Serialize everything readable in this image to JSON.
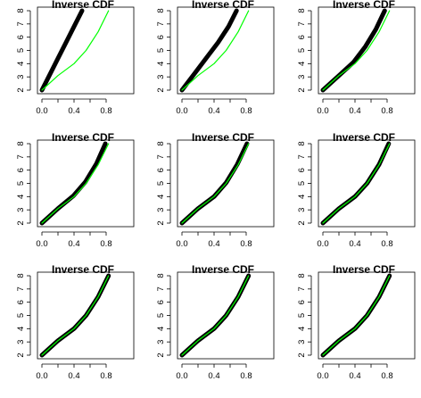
{
  "chart_data": [
    {
      "type": "line",
      "title": "Inverse CDF",
      "xlim": [
        0,
        1
      ],
      "ylim": [
        2,
        8
      ],
      "x_ticks": [
        "0.0",
        "0.4",
        "0.8"
      ],
      "y_ticks": [
        "2",
        "3",
        "4",
        "5",
        "6",
        "7",
        "8"
      ],
      "series": [
        {
          "color": "#000000",
          "x": [
            0.0,
            0.1,
            0.2,
            0.3,
            0.4,
            0.5
          ],
          "y": [
            2.0,
            3.2,
            4.4,
            5.6,
            6.8,
            8.0
          ]
        },
        {
          "color": "#00ff00",
          "x": [
            0.0,
            0.2,
            0.4,
            0.55,
            0.7,
            0.83
          ],
          "y": [
            2.0,
            3.1,
            4.0,
            5.0,
            6.4,
            8.0
          ]
        }
      ]
    },
    {
      "type": "line",
      "title": "Inverse CDF",
      "xlim": [
        0,
        1
      ],
      "ylim": [
        2,
        8
      ],
      "x_ticks": [
        "0.0",
        "0.4",
        "0.8"
      ],
      "y_ticks": [
        "2",
        "3",
        "4",
        "5",
        "6",
        "7",
        "8"
      ],
      "series": [
        {
          "color": "#000000",
          "x": [
            0.0,
            0.15,
            0.3,
            0.45,
            0.58,
            0.68
          ],
          "y": [
            2.0,
            3.2,
            4.4,
            5.6,
            6.8,
            8.0
          ]
        },
        {
          "color": "#00ff00",
          "x": [
            0.0,
            0.2,
            0.4,
            0.55,
            0.7,
            0.83
          ],
          "y": [
            2.0,
            3.1,
            4.0,
            5.0,
            6.4,
            8.0
          ]
        }
      ]
    },
    {
      "type": "line",
      "title": "Inverse CDF",
      "xlim": [
        0,
        1
      ],
      "ylim": [
        2,
        8
      ],
      "x_ticks": [
        "0.0",
        "0.4",
        "0.8"
      ],
      "y_ticks": [
        "2",
        "3",
        "4",
        "5",
        "6",
        "7",
        "8"
      ],
      "series": [
        {
          "color": "#000000",
          "x": [
            0.0,
            0.2,
            0.38,
            0.53,
            0.66,
            0.77
          ],
          "y": [
            2.0,
            3.1,
            4.1,
            5.3,
            6.6,
            8.0
          ]
        },
        {
          "color": "#00ff00",
          "x": [
            0.0,
            0.2,
            0.4,
            0.55,
            0.7,
            0.83
          ],
          "y": [
            2.0,
            3.1,
            4.0,
            5.0,
            6.4,
            8.0
          ]
        }
      ]
    },
    {
      "type": "line",
      "title": "Inverse CDF",
      "xlim": [
        0,
        1
      ],
      "ylim": [
        2,
        8
      ],
      "x_ticks": [
        "0.0",
        "0.4",
        "0.8"
      ],
      "y_ticks": [
        "2",
        "3",
        "4",
        "5",
        "6",
        "7",
        "8"
      ],
      "series": [
        {
          "color": "#000000",
          "x": [
            0.0,
            0.2,
            0.39,
            0.54,
            0.68,
            0.79
          ],
          "y": [
            2.0,
            3.1,
            4.05,
            5.1,
            6.5,
            8.0
          ]
        },
        {
          "color": "#00ff00",
          "x": [
            0.0,
            0.2,
            0.4,
            0.55,
            0.7,
            0.83
          ],
          "y": [
            2.0,
            3.1,
            4.0,
            5.0,
            6.4,
            8.0
          ]
        }
      ]
    },
    {
      "type": "line",
      "title": "Inverse CDF",
      "xlim": [
        0,
        1
      ],
      "ylim": [
        2,
        8
      ],
      "x_ticks": [
        "0.0",
        "0.4",
        "0.8"
      ],
      "y_ticks": [
        "2",
        "3",
        "4",
        "5",
        "6",
        "7",
        "8"
      ],
      "series": [
        {
          "color": "#000000",
          "x": [
            0.0,
            0.2,
            0.4,
            0.55,
            0.69,
            0.81
          ],
          "y": [
            2.0,
            3.1,
            4.0,
            5.05,
            6.45,
            8.0
          ]
        },
        {
          "color": "#00ff00",
          "x": [
            0.0,
            0.2,
            0.4,
            0.55,
            0.7,
            0.83
          ],
          "y": [
            2.0,
            3.1,
            4.0,
            5.0,
            6.4,
            8.0
          ]
        }
      ]
    },
    {
      "type": "line",
      "title": "Inverse CDF",
      "xlim": [
        0,
        1
      ],
      "ylim": [
        2,
        8
      ],
      "x_ticks": [
        "0.0",
        "0.4",
        "0.8"
      ],
      "y_ticks": [
        "2",
        "3",
        "4",
        "5",
        "6",
        "7",
        "8"
      ],
      "series": [
        {
          "color": "#000000",
          "x": [
            0.0,
            0.2,
            0.4,
            0.55,
            0.7,
            0.82
          ],
          "y": [
            2.0,
            3.1,
            4.0,
            5.0,
            6.42,
            8.0
          ]
        },
        {
          "color": "#00ff00",
          "x": [
            0.0,
            0.2,
            0.4,
            0.55,
            0.7,
            0.83
          ],
          "y": [
            2.0,
            3.1,
            4.0,
            5.0,
            6.4,
            8.0
          ]
        }
      ]
    },
    {
      "type": "line",
      "title": "Inverse CDF",
      "xlim": [
        0,
        1
      ],
      "ylim": [
        2,
        8
      ],
      "x_ticks": [
        "0.0",
        "0.4",
        "0.8"
      ],
      "y_ticks": [
        "2",
        "3",
        "4",
        "5",
        "6",
        "7",
        "8"
      ],
      "series": [
        {
          "color": "#000000",
          "x": [
            0.0,
            0.2,
            0.4,
            0.55,
            0.7,
            0.83
          ],
          "y": [
            2.0,
            3.1,
            4.0,
            5.0,
            6.4,
            8.0
          ]
        },
        {
          "color": "#00ff00",
          "x": [
            0.0,
            0.2,
            0.4,
            0.55,
            0.7,
            0.83
          ],
          "y": [
            2.0,
            3.1,
            4.0,
            5.0,
            6.4,
            8.0
          ]
        }
      ]
    },
    {
      "type": "line",
      "title": "Inverse CDF",
      "xlim": [
        0,
        1
      ],
      "ylim": [
        2,
        8
      ],
      "x_ticks": [
        "0.0",
        "0.4",
        "0.8"
      ],
      "y_ticks": [
        "2",
        "3",
        "4",
        "5",
        "6",
        "7",
        "8"
      ],
      "series": [
        {
          "color": "#000000",
          "x": [
            0.0,
            0.2,
            0.4,
            0.55,
            0.7,
            0.83
          ],
          "y": [
            2.0,
            3.1,
            4.0,
            5.0,
            6.4,
            8.0
          ]
        },
        {
          "color": "#00ff00",
          "x": [
            0.0,
            0.2,
            0.4,
            0.55,
            0.7,
            0.83
          ],
          "y": [
            2.0,
            3.1,
            4.0,
            5.0,
            6.4,
            8.0
          ]
        }
      ]
    },
    {
      "type": "line",
      "title": "Inverse CDF",
      "xlim": [
        0,
        1
      ],
      "ylim": [
        2,
        8
      ],
      "x_ticks": [
        "0.0",
        "0.4",
        "0.8"
      ],
      "y_ticks": [
        "2",
        "3",
        "4",
        "5",
        "6",
        "7",
        "8"
      ],
      "series": [
        {
          "color": "#000000",
          "x": [
            0.0,
            0.2,
            0.4,
            0.55,
            0.7,
            0.83
          ],
          "y": [
            2.0,
            3.1,
            4.0,
            5.0,
            6.4,
            8.0
          ]
        },
        {
          "color": "#00ff00",
          "x": [
            0.0,
            0.2,
            0.4,
            0.55,
            0.7,
            0.83
          ],
          "y": [
            2.0,
            3.1,
            4.0,
            5.0,
            6.4,
            8.0
          ]
        }
      ]
    }
  ]
}
